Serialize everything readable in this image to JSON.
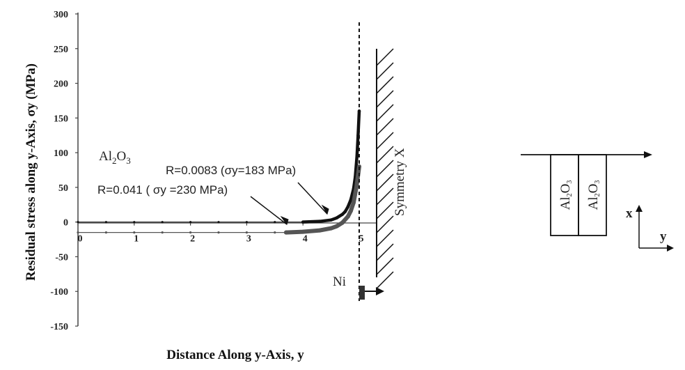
{
  "chart_data": {
    "type": "scatter",
    "title": "",
    "xlabel": "Distance Along y-Axis, y",
    "ylabel": "Residual stress  along y-Axis, σy (MPa)",
    "xlim": [
      0,
      5
    ],
    "ylim": [
      -150,
      300
    ],
    "x_ticks": [
      "0",
      "1",
      "2",
      "3",
      "4",
      "5"
    ],
    "y_ticks": [
      "300",
      "250",
      "200",
      "150",
      "100",
      "50",
      "0",
      "-50",
      "-100",
      "-150"
    ],
    "series": [
      {
        "name": "R=0.0083 (σy=183 MPa)",
        "x": [
          0,
          0.5,
          1,
          1.5,
          2,
          2.5,
          3,
          3.5,
          4,
          4.3,
          4.5,
          4.6,
          4.7,
          4.75,
          4.8,
          4.85,
          4.9,
          4.93,
          4.96,
          4.98,
          5.0
        ],
        "y": [
          0,
          0,
          0,
          0,
          0,
          0,
          0,
          0,
          0,
          1,
          3,
          6,
          11,
          15,
          22,
          32,
          48,
          65,
          95,
          125,
          160
        ]
      },
      {
        "name": "R=0.041 ( σy =230 MPa)",
        "x": [
          0,
          0.5,
          1,
          1.5,
          2,
          2.5,
          3,
          3.5,
          3.7,
          4,
          4.3,
          4.5,
          4.6,
          4.7,
          4.8,
          4.85,
          4.9,
          4.95,
          5.0
        ],
        "y": [
          -15,
          -15,
          -15,
          -15,
          -15,
          -15,
          -15,
          -15,
          -15,
          -14,
          -12,
          -9,
          -6,
          -1,
          8,
          16,
          28,
          50,
          80
        ]
      }
    ],
    "annotations": {
      "material_left": "Al2O3",
      "material_right": "Ni",
      "symmetry_label": "Symmetry X"
    }
  },
  "inset": {
    "block_label_1": "Al2O3",
    "block_label_2": "Al2O3",
    "axis_x": "x",
    "axis_y": "y"
  }
}
